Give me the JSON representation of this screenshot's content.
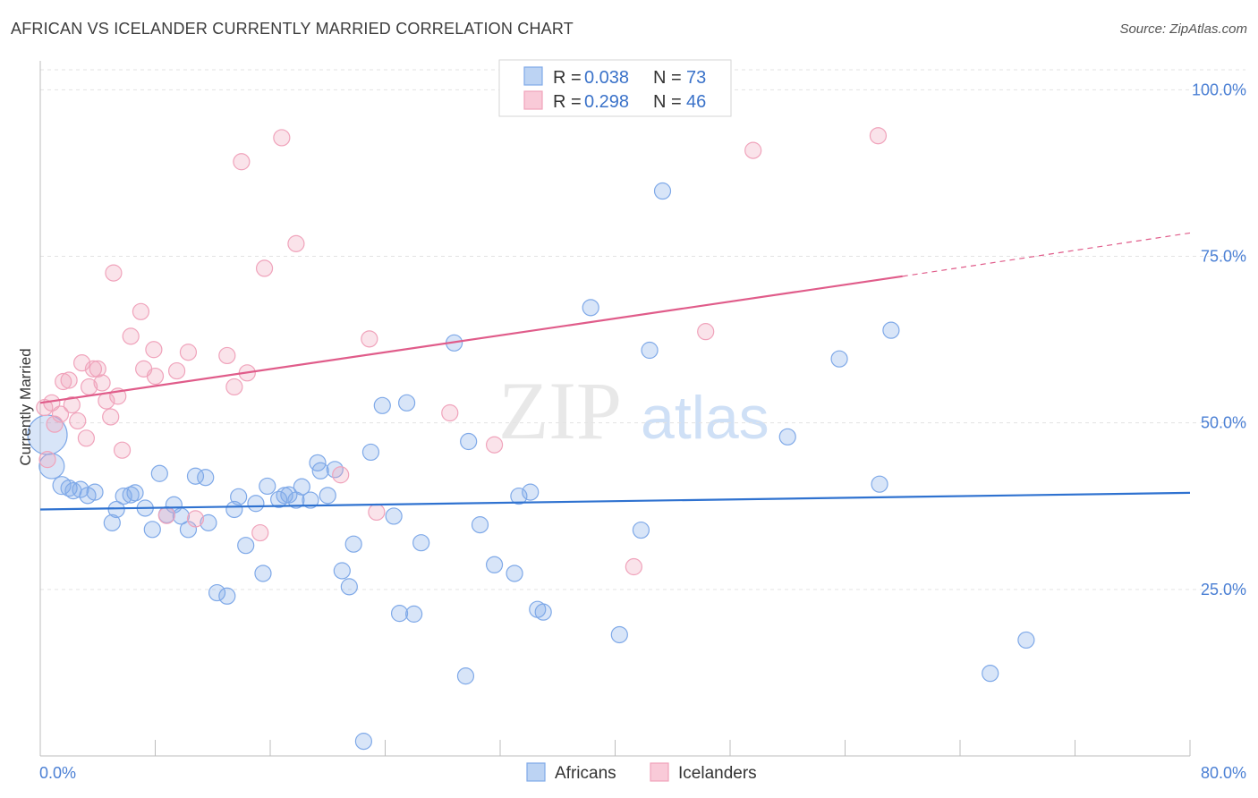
{
  "title": "AFRICAN VS ICELANDER CURRENTLY MARRIED CORRELATION CHART",
  "source": "Source: ZipAtlas.com",
  "watermark": {
    "zip": "ZIP",
    "atlas": "atlas"
  },
  "chart_data": {
    "type": "scatter",
    "xlabel": "",
    "ylabel": "Currently Married",
    "xlim": [
      0,
      80
    ],
    "ylim": [
      0,
      103
    ],
    "x_tick_labels": [
      "0.0%",
      "80.0%"
    ],
    "y_ticks": [
      25,
      50,
      75,
      100
    ],
    "y_tick_labels": [
      "25.0%",
      "50.0%",
      "75.0%",
      "100.0%"
    ],
    "grid": true,
    "legend_position": "top-center",
    "series": [
      {
        "name": "Africans",
        "color": "#7fa9e8",
        "line_color": "#2f72d0",
        "stats": {
          "r_label": "R =",
          "r_value": "0.038",
          "n_label": "N =",
          "n_value": "73"
        },
        "trend": {
          "x": [
            0,
            80
          ],
          "y": [
            37.0,
            39.5
          ],
          "dashed_from": null
        },
        "points": [
          [
            0.5,
            48.2,
            22
          ],
          [
            0.8,
            43.5,
            14
          ],
          [
            1.5,
            40.6,
            10
          ],
          [
            2.0,
            40.2,
            9
          ],
          [
            2.3,
            39.8,
            9
          ],
          [
            2.8,
            40.0,
            9
          ],
          [
            3.3,
            39.1,
            9
          ],
          [
            3.8,
            39.6,
            9
          ],
          [
            5.0,
            35.0,
            9
          ],
          [
            5.3,
            37.0,
            9
          ],
          [
            5.8,
            39.0,
            9
          ],
          [
            6.3,
            39.2,
            9
          ],
          [
            6.6,
            39.5,
            9
          ],
          [
            7.3,
            37.2,
            9
          ],
          [
            7.8,
            34.0,
            9
          ],
          [
            8.3,
            42.4,
            9
          ],
          [
            8.8,
            36.2,
            9
          ],
          [
            9.3,
            37.7,
            9
          ],
          [
            9.8,
            36.0,
            9
          ],
          [
            10.3,
            34.0,
            9
          ],
          [
            10.8,
            42.0,
            9
          ],
          [
            11.5,
            41.8,
            9
          ],
          [
            11.7,
            35.0,
            9
          ],
          [
            12.3,
            24.5,
            9
          ],
          [
            13.0,
            24.0,
            9
          ],
          [
            13.5,
            37.0,
            9
          ],
          [
            13.8,
            38.9,
            9
          ],
          [
            14.3,
            31.6,
            9
          ],
          [
            15.0,
            37.9,
            9
          ],
          [
            15.5,
            27.4,
            9
          ],
          [
            15.8,
            40.5,
            9
          ],
          [
            16.6,
            38.5,
            9
          ],
          [
            17.0,
            39.1,
            9
          ],
          [
            17.3,
            39.2,
            9
          ],
          [
            17.8,
            38.4,
            9
          ],
          [
            18.2,
            40.4,
            9
          ],
          [
            18.8,
            38.4,
            9
          ],
          [
            19.3,
            44.0,
            9
          ],
          [
            20.0,
            39.1,
            9
          ],
          [
            20.5,
            43.0,
            9
          ],
          [
            21.0,
            27.8,
            9
          ],
          [
            21.5,
            25.4,
            9
          ],
          [
            21.8,
            31.8,
            9
          ],
          [
            22.5,
            2.2,
            9
          ],
          [
            23.0,
            45.6,
            9
          ],
          [
            23.8,
            52.6,
            9
          ],
          [
            24.6,
            36.0,
            9
          ],
          [
            25.0,
            21.4,
            9
          ],
          [
            25.5,
            53.0,
            9
          ],
          [
            26.0,
            21.3,
            9
          ],
          [
            26.5,
            32.0,
            9
          ],
          [
            28.8,
            62.0,
            9
          ],
          [
            29.6,
            12.0,
            9
          ],
          [
            29.8,
            47.2,
            9
          ],
          [
            30.6,
            34.7,
            9
          ],
          [
            31.6,
            28.7,
            9
          ],
          [
            33.0,
            27.4,
            9
          ],
          [
            33.3,
            39.0,
            9
          ],
          [
            34.1,
            39.6,
            9
          ],
          [
            34.6,
            22.0,
            9
          ],
          [
            35.0,
            21.6,
            9
          ],
          [
            38.3,
            67.3,
            9
          ],
          [
            40.3,
            18.2,
            9
          ],
          [
            41.8,
            33.9,
            9
          ],
          [
            42.4,
            60.9,
            9
          ],
          [
            43.3,
            84.8,
            9
          ],
          [
            52.0,
            47.9,
            9
          ],
          [
            55.6,
            59.6,
            9
          ],
          [
            58.4,
            40.8,
            9
          ],
          [
            59.2,
            63.9,
            9
          ],
          [
            66.1,
            12.4,
            9
          ],
          [
            68.6,
            17.4,
            9
          ],
          [
            19.5,
            42.8,
            9
          ]
        ]
      },
      {
        "name": "Icelanders",
        "color": "#f0a3bb",
        "line_color": "#e05c8a",
        "stats": {
          "r_label": "R =",
          "r_value": "0.298",
          "n_label": "N =",
          "n_value": "46"
        },
        "trend": {
          "x": [
            0,
            60,
            80
          ],
          "y": [
            53.0,
            72.0,
            78.5
          ],
          "dashed_from": 60
        },
        "points": [
          [
            0.3,
            52.3,
            9
          ],
          [
            0.5,
            44.5,
            9
          ],
          [
            0.8,
            53.0,
            9
          ],
          [
            1.0,
            49.8,
            9
          ],
          [
            1.4,
            51.3,
            9
          ],
          [
            1.6,
            56.2,
            9
          ],
          [
            2.0,
            56.4,
            9
          ],
          [
            2.2,
            52.7,
            9
          ],
          [
            2.6,
            50.3,
            9
          ],
          [
            2.9,
            59.0,
            9
          ],
          [
            3.2,
            47.7,
            9
          ],
          [
            3.4,
            55.4,
            9
          ],
          [
            3.7,
            58.1,
            9
          ],
          [
            4.0,
            58.1,
            9
          ],
          [
            4.3,
            56.0,
            9
          ],
          [
            4.6,
            53.3,
            9
          ],
          [
            4.9,
            50.9,
            9
          ],
          [
            5.1,
            72.5,
            9
          ],
          [
            5.4,
            54.0,
            9
          ],
          [
            5.7,
            45.9,
            9
          ],
          [
            6.3,
            63.0,
            9
          ],
          [
            7.0,
            66.7,
            9
          ],
          [
            7.2,
            58.1,
            9
          ],
          [
            7.9,
            61.0,
            9
          ],
          [
            8.0,
            57.0,
            9
          ],
          [
            8.8,
            36.1,
            9
          ],
          [
            9.5,
            57.8,
            9
          ],
          [
            10.3,
            60.6,
            9
          ],
          [
            10.8,
            35.6,
            9
          ],
          [
            13.0,
            60.1,
            9
          ],
          [
            13.5,
            55.4,
            9
          ],
          [
            14.0,
            89.2,
            9
          ],
          [
            14.4,
            57.5,
            9
          ],
          [
            15.3,
            33.5,
            9
          ],
          [
            15.6,
            73.2,
            9
          ],
          [
            16.8,
            92.8,
            9
          ],
          [
            17.8,
            76.9,
            9
          ],
          [
            20.9,
            42.2,
            9
          ],
          [
            22.9,
            62.6,
            9
          ],
          [
            23.4,
            36.6,
            9
          ],
          [
            28.5,
            51.5,
            9
          ],
          [
            31.6,
            46.7,
            9
          ],
          [
            41.3,
            28.4,
            9
          ],
          [
            46.3,
            63.7,
            9
          ],
          [
            49.6,
            90.9,
            9
          ],
          [
            58.3,
            93.1,
            9
          ]
        ]
      }
    ]
  }
}
